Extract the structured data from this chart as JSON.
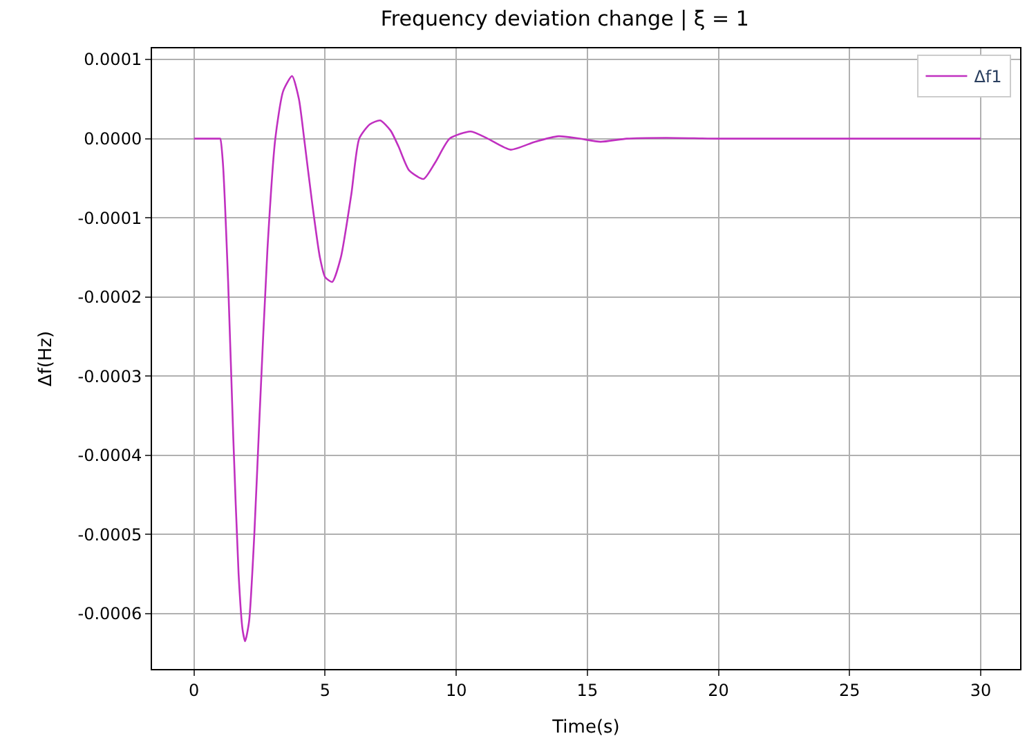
{
  "chart_data": {
    "type": "line",
    "title": "Frequency deviation change | ξ = 1",
    "xlabel": "Time(s)",
    "ylabel": "Δf(Hz)",
    "xlim": [
      -1.6,
      31.5
    ],
    "ylim": [
      -0.00067,
      0.000114
    ],
    "xticks": [
      0,
      5,
      10,
      15,
      20,
      25,
      30
    ],
    "yticks": [
      {
        "value": 0.0001,
        "label": "0.0001"
      },
      {
        "value": 0,
        "label": "0.0000"
      },
      {
        "value": -0.0001,
        "label": "-0.0001"
      },
      {
        "value": -0.0002,
        "label": "-0.0002"
      },
      {
        "value": -0.0003,
        "label": "-0.0003"
      },
      {
        "value": -0.0004,
        "label": "-0.0004"
      },
      {
        "value": -0.0005,
        "label": "-0.0005"
      },
      {
        "value": -0.0006,
        "label": "-0.0006"
      }
    ],
    "grid": true,
    "legend": "top right",
    "series": [
      {
        "name": "Δf1",
        "color": "#c030c0",
        "x": [
          0,
          0.5,
          0.95,
          1.0,
          1.1,
          1.3,
          1.5,
          1.7,
          1.85,
          1.95,
          2.1,
          2.3,
          2.5,
          2.8,
          3.1,
          3.4,
          3.74,
          4.0,
          4.2,
          4.5,
          4.8,
          5.0,
          5.27,
          5.6,
          6.0,
          6.3,
          6.7,
          7.1,
          7.5,
          7.8,
          8.2,
          8.75,
          9.2,
          9.75,
          10.55,
          11.2,
          12.07,
          13.0,
          13.9,
          14.7,
          15.5,
          16.5,
          18,
          20,
          25,
          30
        ],
        "values": [
          0,
          0,
          0,
          0,
          -3e-05,
          -0.00018,
          -0.00038,
          -0.00055,
          -0.00062,
          -0.000635,
          -0.00061,
          -0.0005,
          -0.00035,
          -0.00014,
          0,
          6e-05,
          7.9e-05,
          5e-05,
          0,
          -8e-05,
          -0.00015,
          -0.000175,
          -0.000181,
          -0.00015,
          -7e-05,
          0,
          1.8e-05,
          2.3e-05,
          1e-05,
          -1e-05,
          -4e-05,
          -5.1e-05,
          -3e-05,
          0,
          9e-06,
          0,
          -1.4e-05,
          -4e-06,
          3e-06,
          0,
          -4e-06,
          0,
          1e-06,
          0,
          0,
          0
        ]
      }
    ]
  }
}
